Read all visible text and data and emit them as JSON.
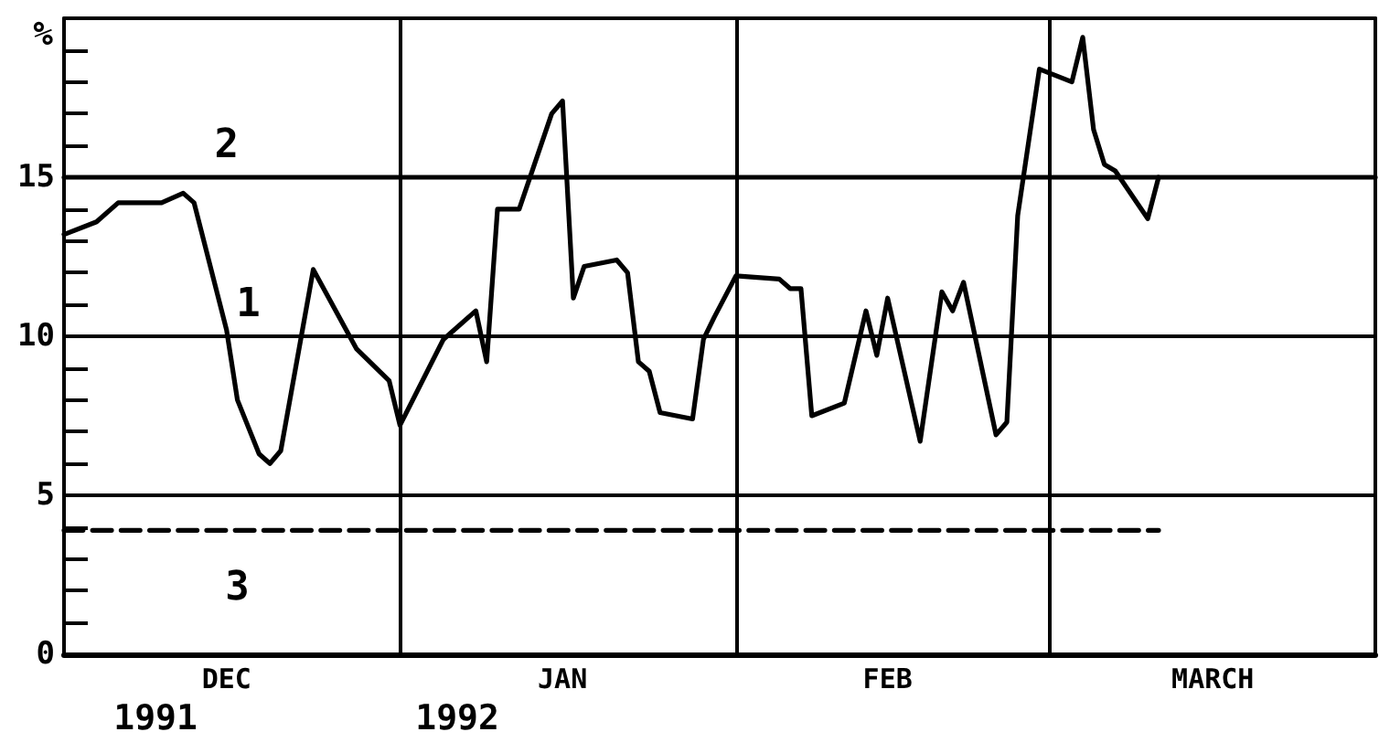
{
  "chart_data": {
    "type": "line",
    "ylabel": "%",
    "xlim": [
      "1991-12-01",
      "1992-03-31"
    ],
    "ylim": [
      0,
      20
    ],
    "xticks": [
      {
        "value": "1991-12-16",
        "label": "DEC"
      },
      {
        "value": "1992-01-16",
        "label": "JAN"
      },
      {
        "value": "1992-02-15",
        "label": "FEB"
      },
      {
        "value": "1992-03-16",
        "label": "MARCH"
      }
    ],
    "yticks": [
      0,
      {
        "value": 1,
        "label": null
      },
      {
        "value": 2,
        "label": null
      },
      {
        "value": 3,
        "label": null
      },
      {
        "value": 4,
        "label": null
      },
      5,
      {
        "value": 6,
        "label": null
      },
      {
        "value": 7,
        "label": null
      },
      {
        "value": 8,
        "label": null
      },
      {
        "value": 9,
        "label": null
      },
      10,
      {
        "value": 11,
        "label": null
      },
      {
        "value": 12,
        "label": null
      },
      {
        "value": 13,
        "label": null
      },
      {
        "value": 14,
        "label": null
      },
      15,
      {
        "value": 16,
        "label": null
      },
      {
        "value": 17,
        "label": null
      },
      {
        "value": 18,
        "label": null
      },
      {
        "value": 19,
        "label": null
      },
      {
        "value": 20,
        "label": null
      }
    ],
    "series": [
      {
        "name": "1",
        "color": "#000000",
        "line_style": "solid",
        "x": [
          "1991-12-01",
          "1991-12-04",
          "1991-12-06",
          "1991-12-10",
          "1991-12-12",
          "1991-12-13",
          "1991-12-16",
          "1991-12-17",
          "1991-12-19",
          "1991-12-20",
          "1991-12-21",
          "1991-12-24",
          "1991-12-28",
          "1991-12-31",
          "1992-01-01",
          "1992-01-05",
          "1992-01-08",
          "1992-01-09",
          "1992-01-10",
          "1992-01-12",
          "1992-01-15",
          "1992-01-16",
          "1992-01-17",
          "1992-01-18",
          "1992-01-21",
          "1992-01-22",
          "1992-01-23",
          "1992-01-24",
          "1992-01-25",
          "1992-01-28",
          "1992-01-29",
          "1992-01-30",
          "1992-02-01",
          "1992-02-05",
          "1992-02-06",
          "1992-02-07",
          "1992-02-08",
          "1992-02-11",
          "1992-02-13",
          "1992-02-14",
          "1992-02-15",
          "1992-02-18",
          "1992-02-20",
          "1992-02-21",
          "1992-02-22",
          "1992-02-25",
          "1992-02-26",
          "1992-02-27",
          "1992-02-29",
          "1992-03-03",
          "1992-03-04",
          "1992-03-05",
          "1992-03-06",
          "1992-03-07",
          "1992-03-10",
          "1992-03-11"
        ],
        "values": [
          13.2,
          13.6,
          14.2,
          14.2,
          14.5,
          14.2,
          10.2,
          8.0,
          6.3,
          6.0,
          6.4,
          12.1,
          9.6,
          8.6,
          7.2,
          9.9,
          10.8,
          9.2,
          14.0,
          14.0,
          17.0,
          17.4,
          11.2,
          12.2,
          12.4,
          12.0,
          9.2,
          8.9,
          7.6,
          7.4,
          9.9,
          10.6,
          11.9,
          11.8,
          11.5,
          11.5,
          7.5,
          7.9,
          10.8,
          9.4,
          11.2,
          6.7,
          11.4,
          10.8,
          11.7,
          6.9,
          7.3,
          13.8,
          18.4,
          18.0,
          19.4,
          16.5,
          15.4,
          15.2,
          13.7,
          15.0
        ]
      },
      {
        "name": "2",
        "color": "#000000",
        "line_style": "solid",
        "x": [
          "1991-12-01",
          "1992-03-31"
        ],
        "values": [
          15,
          15
        ]
      },
      {
        "name": "3",
        "color": "#000000",
        "line_style": "dashed",
        "x": [
          "1991-12-01",
          "1992-03-11"
        ],
        "values": [
          3.9,
          3.9
        ]
      }
    ],
    "ref_lines": [
      {
        "axis": "y",
        "value": 5
      },
      {
        "axis": "y",
        "value": 10
      },
      {
        "axis": "x",
        "value": "1992-01-01"
      },
      {
        "axis": "x",
        "value": "1992-02-01"
      },
      {
        "axis": "x",
        "value": "1992-03-01"
      }
    ],
    "annotations": [
      "1991",
      "1992"
    ],
    "grid": false,
    "legend": false
  }
}
